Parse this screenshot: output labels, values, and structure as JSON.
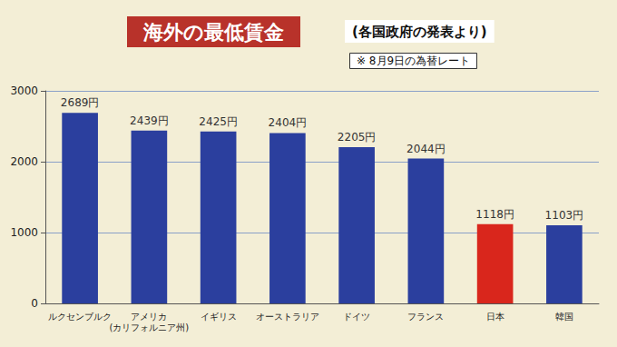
{
  "chart_data": {
    "type": "bar",
    "title": "海外の最低賃金",
    "subtitle": "(各国政府の発表より)",
    "annotations": [
      "※ 8月9日の為替レート"
    ],
    "categories": [
      "ルクセンブルク",
      "アメリカ\n(カリフォルニア州)",
      "イギリス",
      "オーストラリア",
      "ドイツ",
      "フランス",
      "日本",
      "韓国"
    ],
    "values": [
      2689,
      2439,
      2425,
      2404,
      2205,
      2044,
      1118,
      1103
    ],
    "value_labels": [
      "2689円",
      "2439円",
      "2425円",
      "2404円",
      "2205円",
      "2044円",
      "1118円",
      "1103円"
    ],
    "colors": [
      "#2b3f9e",
      "#2b3f9e",
      "#2b3f9e",
      "#2b3f9e",
      "#2b3f9e",
      "#2b3f9e",
      "#d9261c",
      "#2b3f9e"
    ],
    "ylim": [
      0,
      3000
    ],
    "yticks": [
      0,
      1000,
      2000,
      3000
    ],
    "grid": true,
    "data_labels": true
  }
}
